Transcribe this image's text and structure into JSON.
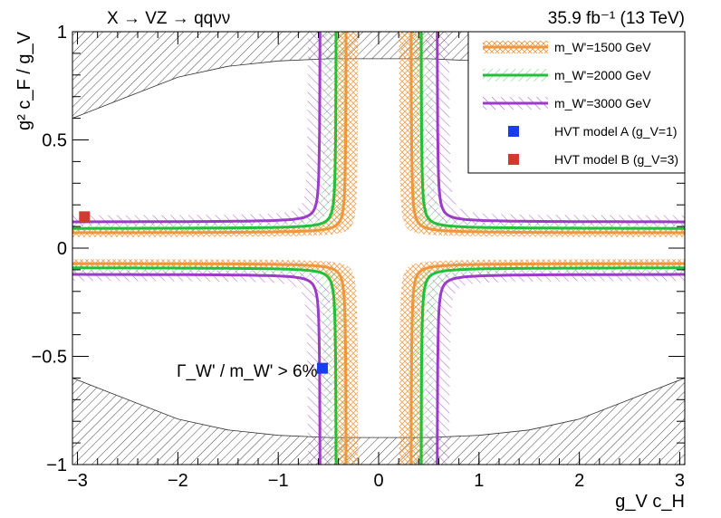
{
  "chart_data": {
    "type": "line",
    "title_left": "X → VZ → qqνν",
    "title_right": "35.9 fb⁻¹ (13 TeV)",
    "xlabel": "g_V c_H",
    "ylabel": "g² c_F / g_V",
    "xlim": [
      -3.05,
      3.05
    ],
    "ylim": [
      -1,
      1
    ],
    "x_ticks": [
      -3,
      -2,
      -1,
      0,
      1,
      2,
      3
    ],
    "y_ticks": [
      -1,
      -0.5,
      0,
      0.5,
      1
    ],
    "x_tick_labels": [
      "−3",
      "−2",
      "−1",
      "0",
      "1",
      "2",
      "3"
    ],
    "y_tick_labels": [
      "−1",
      "−0.5",
      "0",
      "0.5",
      "1"
    ],
    "annotation": "Γ_W' / m_W' > 6%",
    "legend_position": "top-right",
    "legend": [
      {
        "label": "m_W'=1500 GeV",
        "color": "#f0963c",
        "style": "line-with-crosshatch-band"
      },
      {
        "label": "m_W'=2000 GeV",
        "color": "#22c03a",
        "style": "line-with-hatched-band"
      },
      {
        "label": "m_W'=3000 GeV",
        "color": "#9b3bc8",
        "style": "line-with-hatched-band"
      },
      {
        "label": "HVT model A (g_V=1)",
        "color": "#1a3cf0",
        "style": "marker"
      },
      {
        "label": "HVT model B (g_V=3)",
        "color": "#d03a30",
        "style": "marker"
      }
    ],
    "series": [
      {
        "name": "m_W'=1500 GeV",
        "color": "#f0963c",
        "x_asymptote": 0.32,
        "y_asymptote": 0.07,
        "band": [
          0.05,
          0.09
        ]
      },
      {
        "name": "m_W'=2000 GeV",
        "color": "#22c03a",
        "x_asymptote": 0.42,
        "y_asymptote": 0.09,
        "band": [
          0.07,
          0.12
        ]
      },
      {
        "name": "m_W'=3000 GeV",
        "color": "#9b3bc8",
        "x_asymptote": 0.58,
        "y_asymptote": 0.12,
        "band": [
          0.1,
          0.15
        ]
      }
    ],
    "points": [
      {
        "name": "HVT model A (g_V=1)",
        "x": -0.56,
        "y": -0.555,
        "color": "#1a3cf0"
      },
      {
        "name": "HVT model B (g_V=3)",
        "x": -2.93,
        "y": 0.145,
        "color": "#d03a30"
      }
    ],
    "width_exclusion_boundary": {
      "x": [
        -3.05,
        -2.5,
        -2,
        -1.5,
        -1,
        -0.5,
        0,
        0.5,
        1,
        1.5,
        2,
        2.5,
        3.05
      ],
      "y": [
        0.6,
        0.7,
        0.79,
        0.84,
        0.865,
        0.875,
        0.875,
        0.875,
        0.865,
        0.84,
        0.79,
        0.7,
        0.6
      ]
    }
  }
}
